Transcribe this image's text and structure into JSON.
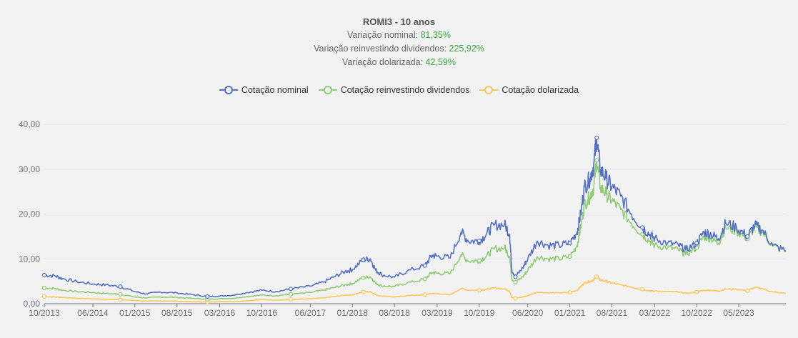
{
  "header": {
    "title": "ROMI3 - 10 anos",
    "nominal_label": "Variação nominal: ",
    "nominal_value": "81,35%",
    "reinvest_label": "Variação reinvestindo dividendos: ",
    "reinvest_value": "225,92%",
    "dollar_label": "Variação dolarizada: ",
    "dollar_value": "42,59%"
  },
  "legend": [
    {
      "name": "Cotação nominal",
      "color": "#5470c6"
    },
    {
      "name": "Cotação reinvestindo dividendos",
      "color": "#91cc75"
    },
    {
      "name": "Cotação dolarizada",
      "color": "#fac858"
    }
  ],
  "colors": {
    "background": "#f2f2f2",
    "grid": "#e0e6f1",
    "axis": "#6e7079",
    "positive": "#3aa83a"
  },
  "chart_data": {
    "type": "line",
    "title": "ROMI3 - 10 anos",
    "xlabel": "",
    "ylabel": "",
    "ylim": [
      0,
      40
    ],
    "x_range": [
      2013.75,
      2023.98
    ],
    "y_ticks": [
      "0,00",
      "10,00",
      "20,00",
      "30,00",
      "40,00"
    ],
    "x_ticks": [
      {
        "t": 2013.75,
        "label": "10/2013"
      },
      {
        "t": 2014.42,
        "label": "06/2014"
      },
      {
        "t": 2015.0,
        "label": "01/2015"
      },
      {
        "t": 2015.58,
        "label": "08/2015"
      },
      {
        "t": 2016.17,
        "label": "03/2016"
      },
      {
        "t": 2016.75,
        "label": "10/2016"
      },
      {
        "t": 2017.42,
        "label": "06/2017"
      },
      {
        "t": 2018.0,
        "label": "01/2018"
      },
      {
        "t": 2018.58,
        "label": "08/2018"
      },
      {
        "t": 2019.17,
        "label": "03/2019"
      },
      {
        "t": 2019.75,
        "label": "10/2019"
      },
      {
        "t": 2020.42,
        "label": "06/2020"
      },
      {
        "t": 2021.0,
        "label": "01/2021"
      },
      {
        "t": 2021.58,
        "label": "08/2021"
      },
      {
        "t": 2022.17,
        "label": "03/2022"
      },
      {
        "t": 2022.75,
        "label": "10/2022"
      },
      {
        "t": 2023.33,
        "label": "05/2023"
      }
    ],
    "series": [
      {
        "name": "Cotação nominal",
        "color": "#5470c6",
        "points": [
          [
            2013.75,
            6.4
          ],
          [
            2013.9,
            6.2
          ],
          [
            2014.0,
            5.6
          ],
          [
            2014.2,
            4.9
          ],
          [
            2014.42,
            4.4
          ],
          [
            2014.6,
            4.2
          ],
          [
            2014.8,
            3.8
          ],
          [
            2015.0,
            2.7
          ],
          [
            2015.15,
            2.2
          ],
          [
            2015.35,
            2.6
          ],
          [
            2015.58,
            2.4
          ],
          [
            2015.8,
            2.0
          ],
          [
            2016.0,
            1.6
          ],
          [
            2016.17,
            1.7
          ],
          [
            2016.35,
            1.9
          ],
          [
            2016.55,
            2.5
          ],
          [
            2016.75,
            3.0
          ],
          [
            2016.95,
            2.7
          ],
          [
            2017.15,
            3.3
          ],
          [
            2017.42,
            3.9
          ],
          [
            2017.6,
            4.8
          ],
          [
            2017.75,
            6.0
          ],
          [
            2017.9,
            7.2
          ],
          [
            2018.0,
            7.6
          ],
          [
            2018.15,
            9.8
          ],
          [
            2018.25,
            10.0
          ],
          [
            2018.32,
            7.5
          ],
          [
            2018.4,
            6.5
          ],
          [
            2018.58,
            5.9
          ],
          [
            2018.75,
            7.2
          ],
          [
            2019.0,
            8.5
          ],
          [
            2019.1,
            10.8
          ],
          [
            2019.17,
            10.6
          ],
          [
            2019.35,
            10.2
          ],
          [
            2019.5,
            16.0
          ],
          [
            2019.6,
            14.0
          ],
          [
            2019.75,
            14.0
          ],
          [
            2019.85,
            15.5
          ],
          [
            2019.95,
            17.5
          ],
          [
            2020.1,
            17.7
          ],
          [
            2020.17,
            15.5
          ],
          [
            2020.2,
            7.5
          ],
          [
            2020.25,
            6.0
          ],
          [
            2020.35,
            8.0
          ],
          [
            2020.42,
            10.0
          ],
          [
            2020.55,
            14.0
          ],
          [
            2020.7,
            13.0
          ],
          [
            2020.85,
            13.0
          ],
          [
            2021.0,
            13.5
          ],
          [
            2021.1,
            16.0
          ],
          [
            2021.15,
            20.0
          ],
          [
            2021.2,
            26.0
          ],
          [
            2021.28,
            28.0
          ],
          [
            2021.33,
            31.0
          ],
          [
            2021.37,
            37.0
          ],
          [
            2021.42,
            30.0
          ],
          [
            2021.5,
            28.0
          ],
          [
            2021.58,
            26.0
          ],
          [
            2021.7,
            24.0
          ],
          [
            2021.85,
            20.0
          ],
          [
            2022.0,
            17.0
          ],
          [
            2022.1,
            15.5
          ],
          [
            2022.17,
            14.5
          ],
          [
            2022.35,
            13.5
          ],
          [
            2022.5,
            13.0
          ],
          [
            2022.6,
            12.0
          ],
          [
            2022.75,
            13.5
          ],
          [
            2022.85,
            16.0
          ],
          [
            2022.95,
            15.5
          ],
          [
            2023.05,
            14.5
          ],
          [
            2023.15,
            18.0
          ],
          [
            2023.3,
            17.0
          ],
          [
            2023.45,
            15.0
          ],
          [
            2023.55,
            17.5
          ],
          [
            2023.65,
            16.5
          ],
          [
            2023.8,
            13.0
          ],
          [
            2023.98,
            11.8
          ]
        ]
      },
      {
        "name": "Cotação reinvestindo dividendos",
        "color": "#91cc75",
        "points": [
          [
            2013.75,
            3.5
          ],
          [
            2013.9,
            3.4
          ],
          [
            2014.0,
            3.0
          ],
          [
            2014.2,
            2.7
          ],
          [
            2014.42,
            2.5
          ],
          [
            2014.6,
            2.3
          ],
          [
            2014.8,
            2.1
          ],
          [
            2015.0,
            1.5
          ],
          [
            2015.15,
            1.3
          ],
          [
            2015.35,
            1.5
          ],
          [
            2015.58,
            1.4
          ],
          [
            2015.8,
            1.2
          ],
          [
            2016.0,
            1.0
          ],
          [
            2016.17,
            1.1
          ],
          [
            2016.35,
            1.2
          ],
          [
            2016.55,
            1.6
          ],
          [
            2016.75,
            1.9
          ],
          [
            2016.95,
            1.8
          ],
          [
            2017.15,
            2.1
          ],
          [
            2017.42,
            2.5
          ],
          [
            2017.6,
            3.0
          ],
          [
            2017.75,
            3.6
          ],
          [
            2017.9,
            4.2
          ],
          [
            2018.0,
            4.5
          ],
          [
            2018.15,
            5.8
          ],
          [
            2018.25,
            6.0
          ],
          [
            2018.32,
            4.6
          ],
          [
            2018.4,
            4.0
          ],
          [
            2018.58,
            3.8
          ],
          [
            2018.75,
            4.6
          ],
          [
            2019.0,
            5.5
          ],
          [
            2019.1,
            7.0
          ],
          [
            2019.17,
            6.8
          ],
          [
            2019.35,
            6.7
          ],
          [
            2019.5,
            11.0
          ],
          [
            2019.6,
            9.5
          ],
          [
            2019.75,
            9.6
          ],
          [
            2019.85,
            10.6
          ],
          [
            2019.95,
            12.2
          ],
          [
            2020.1,
            12.5
          ],
          [
            2020.17,
            10.5
          ],
          [
            2020.2,
            5.5
          ],
          [
            2020.25,
            4.8
          ],
          [
            2020.35,
            6.0
          ],
          [
            2020.42,
            7.5
          ],
          [
            2020.55,
            10.5
          ],
          [
            2020.7,
            10.0
          ],
          [
            2020.85,
            10.0
          ],
          [
            2021.0,
            10.5
          ],
          [
            2021.1,
            13.0
          ],
          [
            2021.15,
            17.0
          ],
          [
            2021.2,
            22.0
          ],
          [
            2021.28,
            24.0
          ],
          [
            2021.33,
            26.0
          ],
          [
            2021.37,
            32.0
          ],
          [
            2021.42,
            26.0
          ],
          [
            2021.5,
            24.5
          ],
          [
            2021.58,
            23.0
          ],
          [
            2021.7,
            21.0
          ],
          [
            2021.85,
            18.0
          ],
          [
            2022.0,
            15.5
          ],
          [
            2022.1,
            14.0
          ],
          [
            2022.17,
            13.0
          ],
          [
            2022.35,
            12.5
          ],
          [
            2022.5,
            12.0
          ],
          [
            2022.6,
            11.0
          ],
          [
            2022.75,
            12.5
          ],
          [
            2022.85,
            15.0
          ],
          [
            2022.95,
            14.5
          ],
          [
            2023.05,
            13.5
          ],
          [
            2023.15,
            17.0
          ],
          [
            2023.3,
            16.2
          ],
          [
            2023.45,
            14.5
          ],
          [
            2023.55,
            17.0
          ],
          [
            2023.65,
            16.0
          ],
          [
            2023.8,
            12.8
          ],
          [
            2023.98,
            11.7
          ]
        ]
      },
      {
        "name": "Cotação dolarizada",
        "color": "#fac858",
        "points": [
          [
            2013.75,
            1.6
          ],
          [
            2013.9,
            1.5
          ],
          [
            2014.0,
            1.4
          ],
          [
            2014.2,
            1.2
          ],
          [
            2014.42,
            1.1
          ],
          [
            2014.6,
            1.0
          ],
          [
            2014.8,
            0.9
          ],
          [
            2015.0,
            0.7
          ],
          [
            2015.15,
            0.6
          ],
          [
            2015.35,
            0.6
          ],
          [
            2015.58,
            0.55
          ],
          [
            2015.8,
            0.45
          ],
          [
            2016.0,
            0.4
          ],
          [
            2016.17,
            0.45
          ],
          [
            2016.35,
            0.5
          ],
          [
            2016.55,
            0.65
          ],
          [
            2016.75,
            0.9
          ],
          [
            2016.95,
            0.8
          ],
          [
            2017.15,
            0.95
          ],
          [
            2017.42,
            1.1
          ],
          [
            2017.6,
            1.3
          ],
          [
            2017.75,
            1.6
          ],
          [
            2017.9,
            1.9
          ],
          [
            2018.0,
            2.0
          ],
          [
            2018.15,
            2.6
          ],
          [
            2018.25,
            2.7
          ],
          [
            2018.32,
            2.0
          ],
          [
            2018.4,
            1.7
          ],
          [
            2018.58,
            1.5
          ],
          [
            2018.75,
            1.8
          ],
          [
            2019.0,
            2.0
          ],
          [
            2019.1,
            2.3
          ],
          [
            2019.17,
            2.2
          ],
          [
            2019.35,
            2.0
          ],
          [
            2019.5,
            3.4
          ],
          [
            2019.6,
            3.0
          ],
          [
            2019.75,
            3.0
          ],
          [
            2019.85,
            3.2
          ],
          [
            2019.95,
            3.5
          ],
          [
            2020.1,
            3.3
          ],
          [
            2020.17,
            2.8
          ],
          [
            2020.2,
            1.4
          ],
          [
            2020.25,
            1.2
          ],
          [
            2020.35,
            1.5
          ],
          [
            2020.42,
            1.8
          ],
          [
            2020.55,
            2.6
          ],
          [
            2020.7,
            2.4
          ],
          [
            2020.85,
            2.4
          ],
          [
            2021.0,
            2.5
          ],
          [
            2021.1,
            3.0
          ],
          [
            2021.15,
            3.8
          ],
          [
            2021.2,
            4.6
          ],
          [
            2021.28,
            5.0
          ],
          [
            2021.33,
            5.4
          ],
          [
            2021.37,
            6.0
          ],
          [
            2021.42,
            5.3
          ],
          [
            2021.5,
            5.0
          ],
          [
            2021.58,
            4.6
          ],
          [
            2021.7,
            4.2
          ],
          [
            2021.85,
            3.7
          ],
          [
            2022.0,
            3.2
          ],
          [
            2022.1,
            2.9
          ],
          [
            2022.17,
            2.8
          ],
          [
            2022.35,
            2.7
          ],
          [
            2022.5,
            2.6
          ],
          [
            2022.6,
            2.3
          ],
          [
            2022.75,
            2.6
          ],
          [
            2022.85,
            3.0
          ],
          [
            2022.95,
            3.0
          ],
          [
            2023.05,
            2.8
          ],
          [
            2023.15,
            3.3
          ],
          [
            2023.3,
            3.2
          ],
          [
            2023.45,
            2.9
          ],
          [
            2023.55,
            3.6
          ],
          [
            2023.65,
            3.4
          ],
          [
            2023.8,
            2.6
          ],
          [
            2023.98,
            2.3
          ]
        ]
      }
    ]
  }
}
